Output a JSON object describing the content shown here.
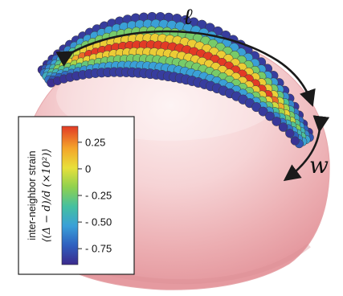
{
  "labels": {
    "length": "ℓ",
    "width": "w"
  },
  "colorbar": {
    "title": "inter-neighbor strain",
    "formula": "⟨(Δ − d)/d (×10²)⟩",
    "ticks": [
      "0.25",
      "0",
      "- 0.25",
      "- 0.50",
      "- 0.75"
    ],
    "tick_values": [
      0.25,
      0,
      -0.25,
      -0.5,
      -0.75
    ],
    "range": [
      -0.9,
      0.4
    ],
    "colormap": [
      "#3b2a8c",
      "#2f5fbf",
      "#3aa0d8",
      "#45c0a0",
      "#8fd14f",
      "#e8e03a",
      "#f4a52a",
      "#e23a25"
    ]
  },
  "colors": {
    "sphere": "#f3c6c8",
    "sphere_edge": "#e7a7ab",
    "arrow": "#1a1a1a"
  }
}
